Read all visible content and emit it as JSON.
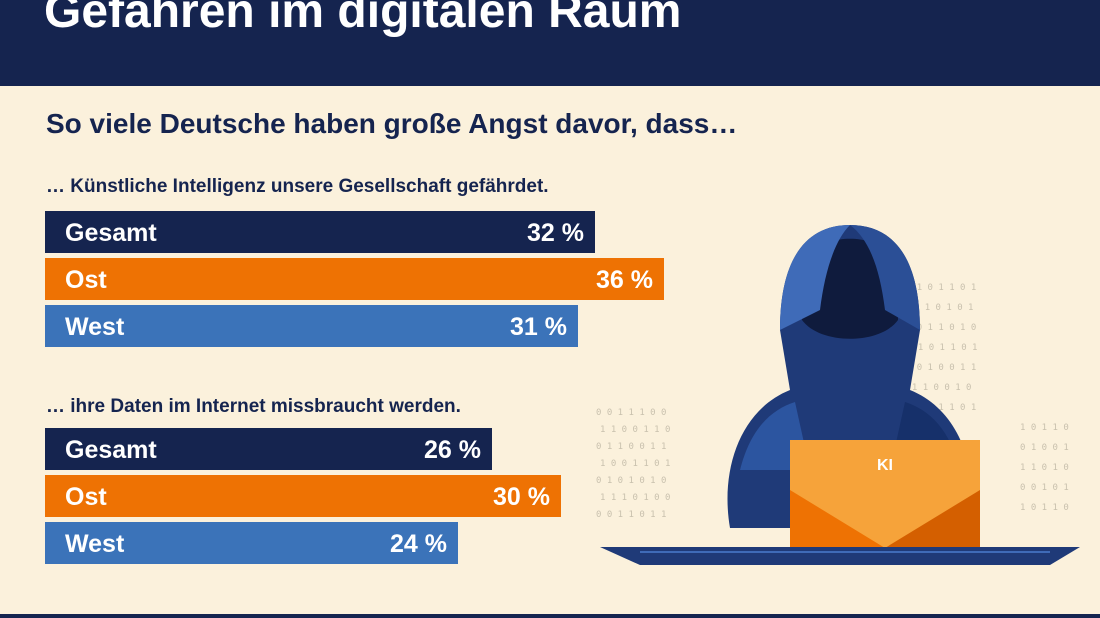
{
  "header": {
    "title": "Gefahren im digitalen Raum"
  },
  "subtitle": "So viele Deutsche haben große Angst davor, dass…",
  "illustration": {
    "laptop_label": "KI"
  },
  "colors": {
    "Gesamt": "#15244f",
    "Ost": "#ee7203",
    "West": "#3b73b9"
  },
  "chart_data": [
    {
      "type": "bar",
      "title": "… Künstliche Intelligenz unsere Gesellschaft gefährdet.",
      "categories": [
        "Gesamt",
        "Ost",
        "West"
      ],
      "values": [
        32,
        36,
        31
      ],
      "value_labels": [
        "32 %",
        "36 %",
        "31 %"
      ],
      "xlim": [
        0,
        50
      ],
      "orientation": "horizontal"
    },
    {
      "type": "bar",
      "title": "… ihre Daten im Internet missbraucht werden.",
      "categories": [
        "Gesamt",
        "Ost",
        "West"
      ],
      "values": [
        26,
        30,
        24
      ],
      "value_labels": [
        "26 %",
        "30 %",
        "24 %"
      ],
      "xlim": [
        0,
        50
      ],
      "orientation": "horizontal"
    }
  ]
}
